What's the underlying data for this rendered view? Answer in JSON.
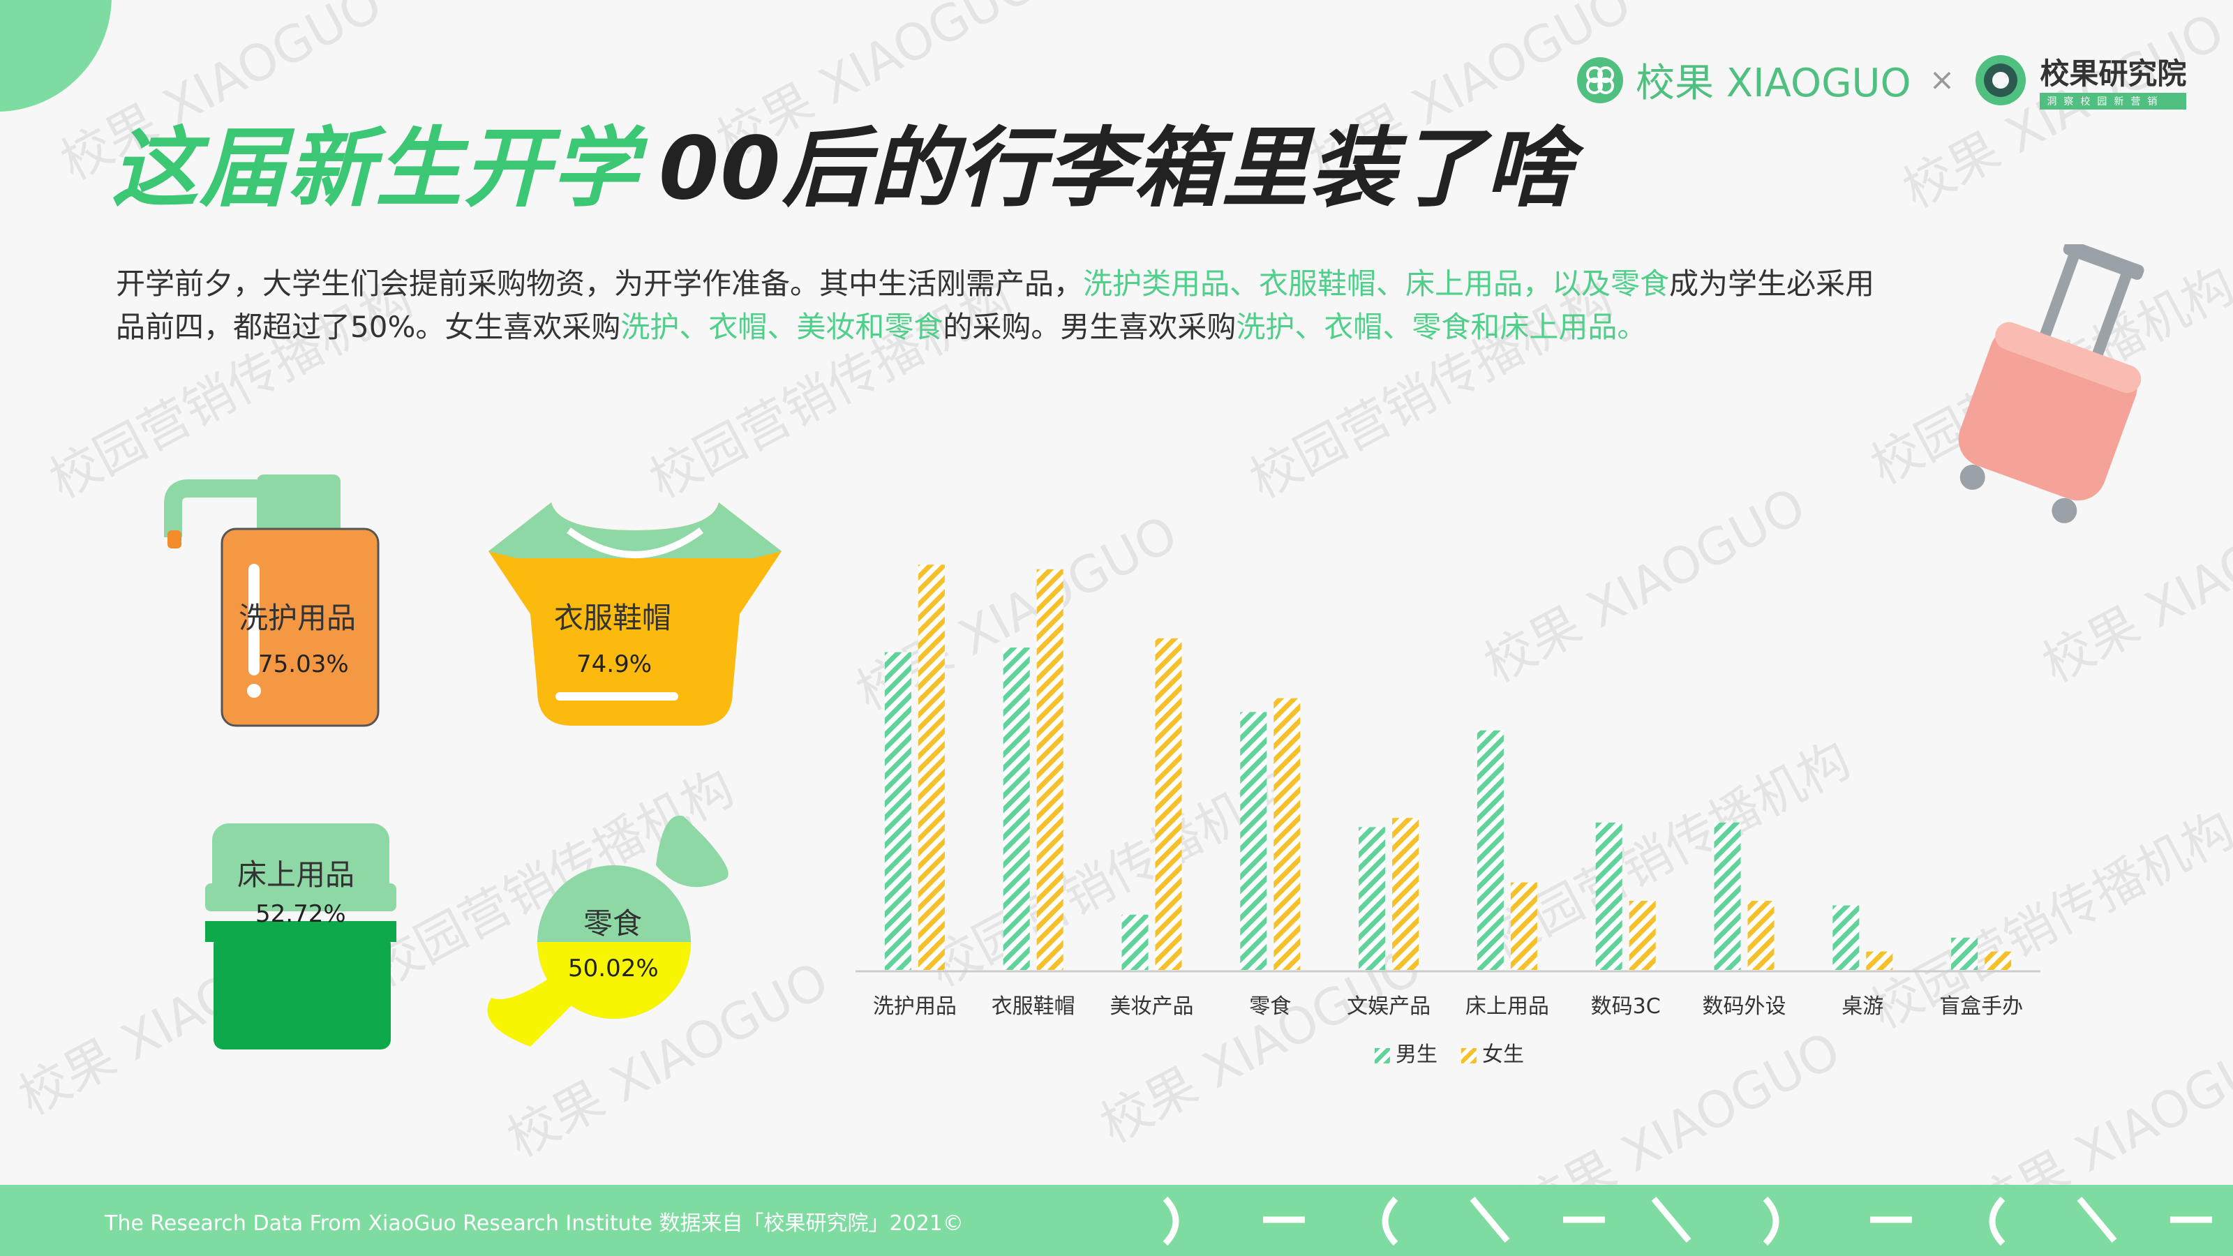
{
  "header": {
    "title_highlight": "这届新生开学",
    "title_main": "00后的行李箱里装了啥",
    "brand_xiaoguo": "校果 XIAOGUO",
    "brand_sep": "×",
    "brand_institute": "校果研究院",
    "brand_institute_sub": "洞察校园新营销"
  },
  "intro": {
    "p1": "开学前夕，大学生们会提前采购物资，为开学作准备。其中生活刚需产品，",
    "p1_hl": "洗护类用品、衣服鞋帽、床上用品，以及零食",
    "p2": "成为学生必采用品前四，都超过了50%。女生喜欢采购",
    "p2_hl": "洗护、衣帽、美妆和零食",
    "p3": "的采购。男生喜欢采购",
    "p3_hl": "洗护、衣帽、零食和床上用品。"
  },
  "stats": [
    {
      "label": "洗护用品",
      "value": "75.03%"
    },
    {
      "label": "衣服鞋帽",
      "value": "74.9%"
    },
    {
      "label": "床上用品",
      "value": "52.72%"
    },
    {
      "label": "零食",
      "value": "50.02%"
    }
  ],
  "chart_data": {
    "type": "bar",
    "title": "",
    "xlabel": "",
    "ylabel": "",
    "categories": [
      "洗护用品",
      "衣服鞋帽",
      "美妆产品",
      "零食",
      "文娱产品",
      "床上用品",
      "数码3C",
      "数码外设",
      "桌游",
      "盲盒手办"
    ],
    "series": [
      {
        "name": "男生",
        "color": "#5fd39a",
        "values": [
          69,
          70,
          12,
          56,
          31,
          52,
          32,
          32,
          14,
          7
        ]
      },
      {
        "name": "女生",
        "color": "#f5c02a",
        "values": [
          88,
          87,
          72,
          59,
          33,
          19,
          15,
          15,
          4,
          4
        ]
      }
    ],
    "ylim": [
      0,
      100
    ],
    "grid": false,
    "legend": "bottom"
  },
  "watermarks": [
    "校果 XIAOGUO",
    "校园营销传播机构"
  ],
  "footer": {
    "text": "The Research Data  From XiaoGuo Research Institute 数据来自「校果研究院」2021©"
  }
}
